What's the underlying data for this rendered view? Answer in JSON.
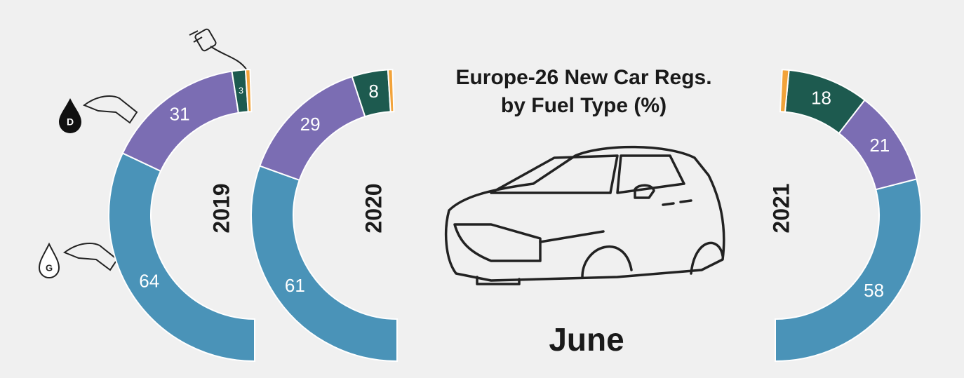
{
  "title": [
    "Europe-26 New Car Regs.",
    "by Fuel Type (%)"
  ],
  "month": "June",
  "icons": {
    "diesel": "D",
    "gasoline": "G"
  },
  "chart_data": [
    {
      "type": "half-donut",
      "title": "2019",
      "side": "left",
      "values": [
        64,
        31,
        3,
        1
      ],
      "colors": [
        "#4a93b8",
        "#7b6db3",
        "#1d5a4f",
        "#f2a33a"
      ]
    },
    {
      "type": "half-donut",
      "title": "2020",
      "side": "left",
      "values": [
        61,
        29,
        8,
        1
      ],
      "colors": [
        "#4a93b8",
        "#7b6db3",
        "#1d5a4f",
        "#f2a33a"
      ]
    },
    {
      "type": "half-donut",
      "title": "2021",
      "side": "right",
      "values": [
        58,
        21,
        18,
        1.5
      ],
      "colors": [
        "#4a93b8",
        "#7b6db3",
        "#1d5a4f",
        "#f2a33a"
      ]
    }
  ]
}
